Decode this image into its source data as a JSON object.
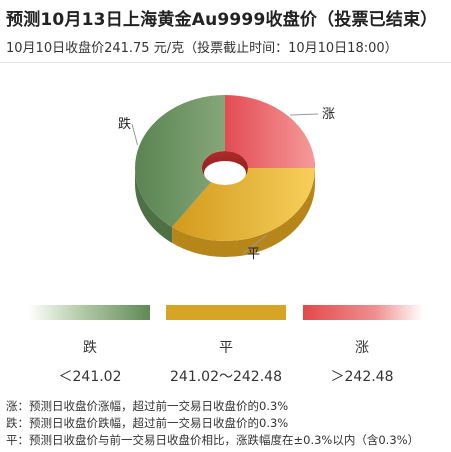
{
  "header": {
    "title": "预测10月13日上海黄金Au9999收盘价（投票已结束）",
    "subtitle": "10月10日收盘价241.75 元/克（投票截止时间：10月10日18:00）"
  },
  "chart_data": {
    "type": "pie",
    "style": "3d-donut",
    "slices": [
      {
        "label": "涨",
        "value": 25,
        "color": "#e0525a"
      },
      {
        "label": "平",
        "value": 35,
        "color": "#d9a524"
      },
      {
        "label": "跌",
        "value": 40,
        "color": "#6a8f5e"
      }
    ]
  },
  "legend": [
    {
      "label": "跌",
      "range": "＜241.02",
      "color": "#5f8a55"
    },
    {
      "label": "平",
      "range": "241.02～242.48",
      "color": "#d6a526"
    },
    {
      "label": "涨",
      "range": "＞242.48",
      "color": "#e24a4a"
    }
  ],
  "notes": [
    "涨：预测日收盘价涨幅，超过前一交易日收盘价的0.3%",
    "跌：预测日收盘价跌幅，超过前一交易日收盘价的0.3%",
    "平：预测日收盘价与前一交易日收盘价相比，涨跌幅度在±0.3%以内（含0.3%）"
  ]
}
